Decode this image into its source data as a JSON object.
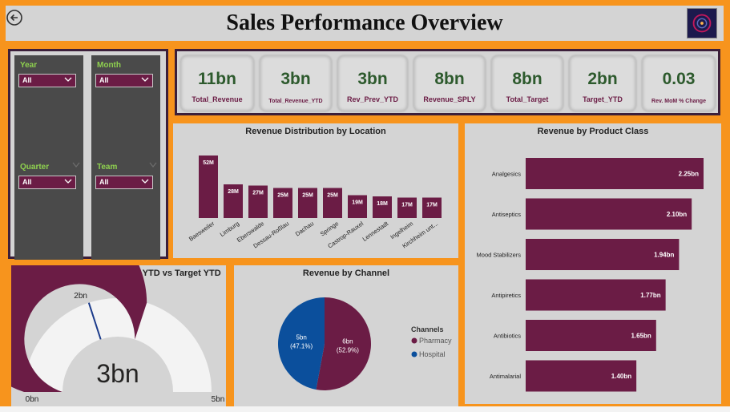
{
  "header": {
    "title": "Sales Performance Overview"
  },
  "filters": [
    {
      "label": "Year",
      "value": "All"
    },
    {
      "label": "Month",
      "value": "All"
    },
    {
      "label": "Quarter",
      "value": "All"
    },
    {
      "label": "Team",
      "value": "All"
    }
  ],
  "kpis": [
    {
      "value": "11bn",
      "label": "Total_Revenue"
    },
    {
      "value": "3bn",
      "label": "Total_Revenue_YTD"
    },
    {
      "value": "3bn",
      "label": "Rev_Prev_YTD"
    },
    {
      "value": "8bn",
      "label": "Revenue_SPLY"
    },
    {
      "value": "8bn",
      "label": "Total_Target"
    },
    {
      "value": "2bn",
      "label": "Target_YTD"
    },
    {
      "value": "0.03",
      "label": "Rev. MoM % Change"
    }
  ],
  "colors": {
    "accent": "#f7941d",
    "bar": "#6b1c45",
    "pharmacy": "#6b1c45",
    "hospital": "#0b4f9c",
    "kpi_value": "#2d5a2d",
    "filter_label": "#8fd14f"
  },
  "chart_data": [
    {
      "type": "bar",
      "title": "Revenue Distribution by Location",
      "categories": [
        "Baesweiler",
        "Limburg",
        "Eberswalde",
        "Dessau-Roßlau",
        "Dachau",
        "Springe",
        "Castrop-Rauxel",
        "Lennestadt",
        "Ingelheim",
        "Kirchheim unt..."
      ],
      "values": [
        52,
        28,
        27,
        25,
        25,
        25,
        19,
        18,
        17,
        17
      ],
      "data_labels": [
        "52M",
        "28M",
        "27M",
        "25M",
        "25M",
        "25M",
        "19M",
        "18M",
        "17M",
        "17M"
      ],
      "ylim": [
        0,
        52
      ]
    },
    {
      "type": "bar",
      "orientation": "horizontal",
      "title": "Revenue by Product Class",
      "categories": [
        "Analgesics",
        "Antiseptics",
        "Mood Stabilizers",
        "Antipiretics",
        "Antibiotics",
        "Antimalarial"
      ],
      "values": [
        2.25,
        2.1,
        1.94,
        1.77,
        1.65,
        1.4
      ],
      "data_labels": [
        "2.25bn",
        "2.10bn",
        "1.94bn",
        "1.77bn",
        "1.65bn",
        "1.40bn"
      ]
    },
    {
      "type": "gauge",
      "title": "Actual Revenue Performance YTD vs Target YTD",
      "value": 3,
      "value_label": "3bn",
      "min": 0,
      "min_label": "0bn",
      "max": 5,
      "max_label": "5bn",
      "target": 2,
      "target_label": "2bn"
    },
    {
      "type": "pie",
      "title": "Revenue by Channel",
      "legend_title": "Channels",
      "legend_position": "right",
      "slices": [
        {
          "name": "Pharmacy",
          "value": 6,
          "percent": 52.9,
          "label_value": "6bn",
          "label_percent": "(52.9%)"
        },
        {
          "name": "Hospital",
          "value": 5,
          "percent": 47.1,
          "label_value": "5bn",
          "label_percent": "(47.1%)"
        }
      ]
    }
  ]
}
